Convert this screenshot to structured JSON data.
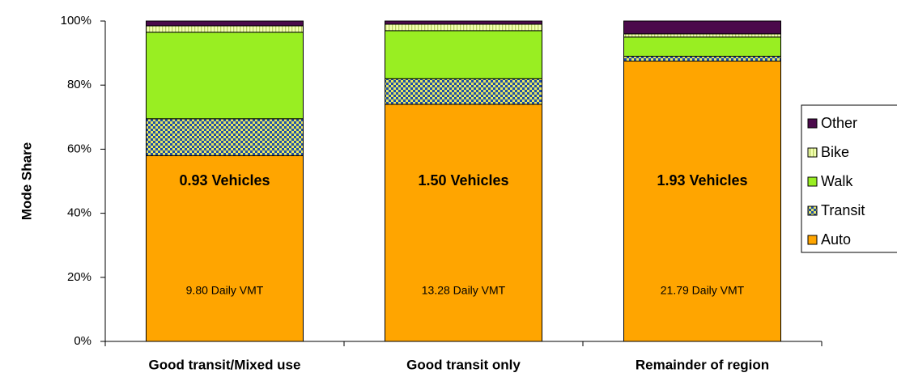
{
  "chart_data": {
    "type": "stacked_bar",
    "y_label": "Mode Share",
    "categories": [
      "Good transit/Mixed use",
      "Good transit only",
      "Remainder of region"
    ],
    "series": [
      {
        "name": "Auto",
        "color": "#ffa500",
        "values": [
          58,
          74,
          87.5
        ]
      },
      {
        "name": "Transit",
        "color": "checker",
        "values": [
          11.5,
          8,
          1.5
        ]
      },
      {
        "name": "Walk",
        "color": "#99ee22",
        "values": [
          27,
          15,
          6
        ]
      },
      {
        "name": "Bike",
        "color": "stripe",
        "values": [
          2,
          2,
          1
        ]
      },
      {
        "name": "Other",
        "color": "#4b0a4b",
        "values": [
          1.5,
          1,
          4
        ]
      }
    ],
    "bar_labels": [
      "0.93 Vehicles",
      "1.50 Vehicles",
      "1.93 Vehicles"
    ],
    "vmt_labels": [
      "9.80 Daily VMT",
      "13.28 Daily VMT",
      "21.79 Daily VMT"
    ],
    "ylim": [
      0,
      100
    ],
    "yticks": [
      {
        "value": 0,
        "label": "0%"
      },
      {
        "value": 20,
        "label": "20%"
      },
      {
        "value": 40,
        "label": "40%"
      },
      {
        "value": 60,
        "label": "60%"
      },
      {
        "value": 80,
        "label": "80%"
      },
      {
        "value": 100,
        "label": "100%"
      }
    ],
    "legend": "right"
  }
}
